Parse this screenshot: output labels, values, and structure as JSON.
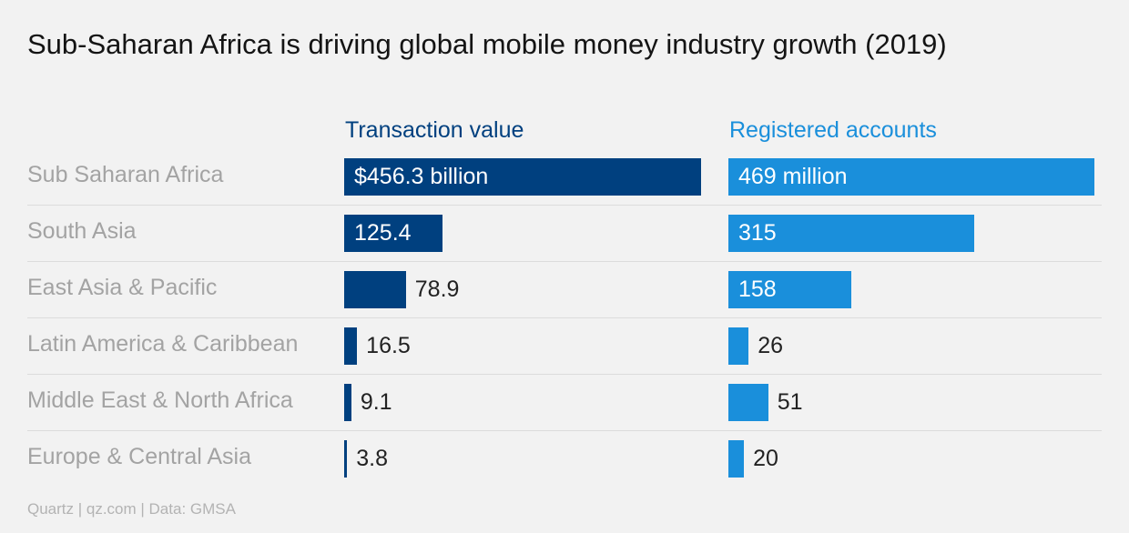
{
  "title": "Sub-Saharan Africa is driving global mobile money industry growth (2019)",
  "source": "Quartz | qz.com | Data: GMSA",
  "colors": {
    "transaction": "#00407f",
    "accounts": "#1a8fdb"
  },
  "chart_data": {
    "type": "bar",
    "orientation": "horizontal",
    "categories": [
      "Sub Saharan Africa",
      "South Asia",
      "East Asia & Pacific",
      "Latin America & Caribbean",
      "Middle East & North Africa",
      "Europe & Central Asia"
    ],
    "series": [
      {
        "name": "Transaction value",
        "values": [
          456.3,
          125.4,
          78.9,
          16.5,
          9.1,
          3.8
        ],
        "labels": [
          "$456.3 billion",
          "125.4",
          "78.9",
          "16.5",
          "9.1",
          "3.8"
        ]
      },
      {
        "name": "Registered accounts",
        "values": [
          469,
          315,
          158,
          26,
          51,
          20
        ],
        "labels": [
          "469 million",
          "315",
          "158",
          "26",
          "51",
          "20"
        ]
      }
    ],
    "title": "Sub-Saharan Africa is driving global mobile money industry growth (2019)",
    "grid": false,
    "legend": "column headers"
  }
}
